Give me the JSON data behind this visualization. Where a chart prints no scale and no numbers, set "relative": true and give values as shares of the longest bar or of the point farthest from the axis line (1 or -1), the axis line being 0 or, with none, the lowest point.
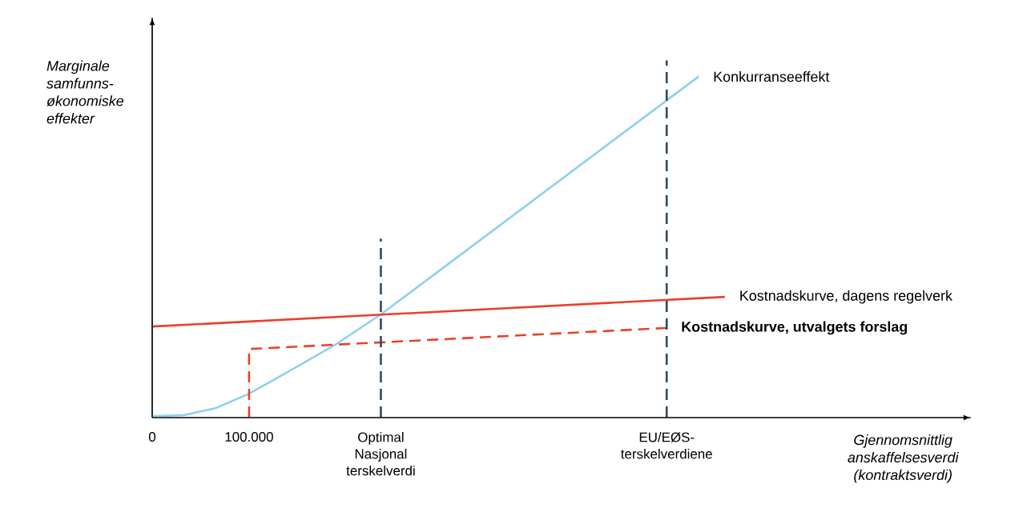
{
  "chart_data": {
    "type": "line",
    "relative": true,
    "xlabel": "Gjennomsnittlig anskaffelsesverdi (kontraktsverdi)",
    "ylabel": "Marginale samfunns-økonomiske effekter",
    "xlim": [
      0,
      845000
    ],
    "xticks": [
      0,
      {
        "value": 100000,
        "label": "100.000"
      },
      {
        "value": 236000,
        "label": "Optimal Nasjonal terskelverdi"
      },
      {
        "value": 531000,
        "label": "EU/EØS-terskelverdiene"
      }
    ],
    "tick_labels": "x",
    "grid": false,
    "marker": "none",
    "series": [
      {
        "name": "Konkurranseeffekt",
        "color": "#8ecfef",
        "line_style": "solid",
        "x": [
          0,
          33000,
          66000,
          100000,
          140000,
          190000,
          236000,
          564000
        ],
        "values": [
          0.004,
          0.007,
          0.027,
          0.067,
          0.128,
          0.206,
          0.289,
          0.955
        ]
      },
      {
        "name": "Kostnadskurve, dagens regelverk",
        "color": "#e8412a",
        "line_style": "solid",
        "x": [
          0,
          591000
        ],
        "values": [
          0.255,
          0.338
        ]
      },
      {
        "name": "**Kostnadskurve, utvalgets forslag**",
        "color": "#e8412a",
        "line_style": "dashed",
        "x": [
          100000,
          100000,
          531000
        ],
        "values": [
          0,
          0.192,
          0.251
        ]
      },
      {
        "color": "#2d4a5e",
        "line_style": "dashed",
        "x": [
          236000,
          236000
        ],
        "values": [
          0,
          0.501
        ]
      },
      {
        "color": "#2d4a5e",
        "line_style": "dashed",
        "x": [
          531000,
          531000
        ],
        "values": [
          0,
          1
        ]
      }
    ]
  }
}
